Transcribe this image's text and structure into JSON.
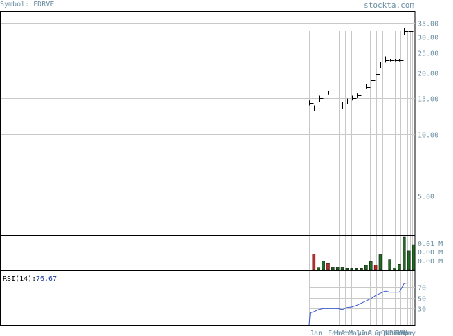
{
  "header": {
    "symbol_label": "Symbol: FDRVF",
    "site": "stockta.com"
  },
  "colors": {
    "label": "#6b8fa3",
    "grid": "#c8c8c8",
    "up": "#1f6b1f",
    "down": "#cc2222",
    "rsi_line": "#3355cc",
    "rsi_value": "#1a3aa0"
  },
  "chart_data": [
    {
      "type": "line",
      "panel": "price",
      "scale": "log",
      "y_ticks": [
        {
          "v": 35,
          "label": "35.00"
        },
        {
          "v": 30,
          "label": "30.00"
        },
        {
          "v": 25,
          "label": "25.00"
        },
        {
          "v": 20,
          "label": "20.00"
        },
        {
          "v": 15,
          "label": "15.00"
        },
        {
          "v": 10,
          "label": "10.00"
        },
        {
          "v": 5,
          "label": "5.00"
        }
      ],
      "x_labels": [
        "Jan",
        "Feb",
        "Mar",
        "Apr",
        "May",
        "Jun",
        "Jul",
        "Aug",
        "Sep",
        "Oct",
        "Nov",
        "Dec",
        "Jan",
        "Feb",
        "Mar",
        "Apr",
        "May"
      ],
      "price_bars": [
        {
          "period": 0,
          "high": 14.6,
          "low": 13.8,
          "close": 14.2
        },
        {
          "period": 1,
          "high": 13.8,
          "low": 13.0,
          "close": 13.3
        },
        {
          "period": 2,
          "high": 15.4,
          "low": 14.4,
          "close": 15.0
        },
        {
          "period": 3,
          "high": 16.2,
          "low": 15.4,
          "close": 15.9
        },
        {
          "period": 4,
          "high": 16.2,
          "low": 15.6,
          "close": 16.0
        },
        {
          "period": 5,
          "high": 16.2,
          "low": 15.6,
          "close": 16.0
        },
        {
          "period": 6,
          "high": 16.2,
          "low": 15.6,
          "close": 16.0
        },
        {
          "period": 7,
          "high": 14.4,
          "low": 13.3,
          "close": 13.7
        },
        {
          "period": 8,
          "high": 14.9,
          "low": 14.0,
          "close": 14.4
        },
        {
          "period": 9,
          "high": 15.4,
          "low": 14.6,
          "close": 15.0
        },
        {
          "period": 10,
          "high": 15.8,
          "low": 15.0,
          "close": 15.4
        },
        {
          "period": 11,
          "high": 16.6,
          "low": 15.9,
          "close": 16.3
        },
        {
          "period": 12,
          "high": 17.5,
          "low": 16.6,
          "close": 17.0
        },
        {
          "period": 13,
          "high": 18.8,
          "low": 17.8,
          "close": 18.3
        },
        {
          "period": 14,
          "high": 20.2,
          "low": 19.0,
          "close": 19.7
        },
        {
          "period": 15,
          "high": 22.5,
          "low": 21.0,
          "close": 21.6
        },
        {
          "period": 16,
          "high": 24.0,
          "low": 22.4,
          "close": 23.0
        },
        {
          "period": 17,
          "high": 23.3,
          "low": 22.7,
          "close": 23.0
        },
        {
          "period": 18,
          "high": 23.3,
          "low": 22.7,
          "close": 23.0
        },
        {
          "period": 19,
          "high": 23.3,
          "low": 22.7,
          "close": 23.0
        },
        {
          "period": 20,
          "high": 33.0,
          "low": 30.5,
          "close": 32.0
        },
        {
          "period": 21,
          "high": 32.8,
          "low": 31.5,
          "close": 32.0
        }
      ],
      "ylim": [
        3.2,
        40
      ]
    },
    {
      "type": "bar",
      "panel": "volume",
      "y_ticks": [
        "0.01 M",
        "0.00 M",
        "0.00 M"
      ],
      "values": [
        {
          "period": 1,
          "v": 0.0082,
          "dir": "down"
        },
        {
          "period": 2,
          "v": 0.0012,
          "dir": "up"
        },
        {
          "period": 3,
          "v": 0.0046,
          "dir": "up"
        },
        {
          "period": 4,
          "v": 0.0032,
          "dir": "down"
        },
        {
          "period": 5,
          "v": 0.0013,
          "dir": "up"
        },
        {
          "period": 6,
          "v": 0.0013,
          "dir": "up"
        },
        {
          "period": 7,
          "v": 0.0013,
          "dir": "up"
        },
        {
          "period": 8,
          "v": 0.0006,
          "dir": "up"
        },
        {
          "period": 9,
          "v": 0.0006,
          "dir": "up"
        },
        {
          "period": 10,
          "v": 0.0006,
          "dir": "up"
        },
        {
          "period": 11,
          "v": 0.0006,
          "dir": "up"
        },
        {
          "period": 12,
          "v": 0.0022,
          "dir": "up"
        },
        {
          "period": 13,
          "v": 0.0042,
          "dir": "up"
        },
        {
          "period": 14,
          "v": 0.0024,
          "dir": "down"
        },
        {
          "period": 15,
          "v": 0.0078,
          "dir": "up"
        },
        {
          "period": 17,
          "v": 0.0052,
          "dir": "up"
        },
        {
          "period": 18,
          "v": 0.001,
          "dir": "up"
        },
        {
          "period": 19,
          "v": 0.0028,
          "dir": "up"
        },
        {
          "period": 20,
          "v": 0.017,
          "dir": "up"
        },
        {
          "period": 21,
          "v": 0.0098,
          "dir": "up"
        },
        {
          "period": 22,
          "v": 0.013,
          "dir": "up"
        }
      ],
      "ylim": [
        0,
        0.017
      ]
    },
    {
      "type": "line",
      "panel": "rsi",
      "title_label": "RSI(14):",
      "current_value": "76.67",
      "y_ticks": [
        {
          "v": 70,
          "label": "70"
        },
        {
          "v": 50,
          "label": "50"
        },
        {
          "v": 30,
          "label": "30"
        }
      ],
      "ylim": [
        0,
        100
      ],
      "points": [
        {
          "period": 0,
          "v": 0
        },
        {
          "period": 0.2,
          "v": 22
        },
        {
          "period": 1,
          "v": 24
        },
        {
          "period": 2,
          "v": 28
        },
        {
          "period": 3,
          "v": 30
        },
        {
          "period": 4,
          "v": 30
        },
        {
          "period": 5,
          "v": 30
        },
        {
          "period": 6,
          "v": 30
        },
        {
          "period": 7,
          "v": 28
        },
        {
          "period": 8,
          "v": 32
        },
        {
          "period": 9,
          "v": 33
        },
        {
          "period": 10,
          "v": 36
        },
        {
          "period": 11,
          "v": 40
        },
        {
          "period": 12,
          "v": 44
        },
        {
          "period": 13,
          "v": 48
        },
        {
          "period": 14,
          "v": 54
        },
        {
          "period": 15,
          "v": 58
        },
        {
          "period": 16,
          "v": 62
        },
        {
          "period": 17,
          "v": 60
        },
        {
          "period": 18,
          "v": 60
        },
        {
          "period": 19,
          "v": 60
        },
        {
          "period": 20,
          "v": 76
        },
        {
          "period": 21,
          "v": 76.67
        }
      ]
    }
  ]
}
